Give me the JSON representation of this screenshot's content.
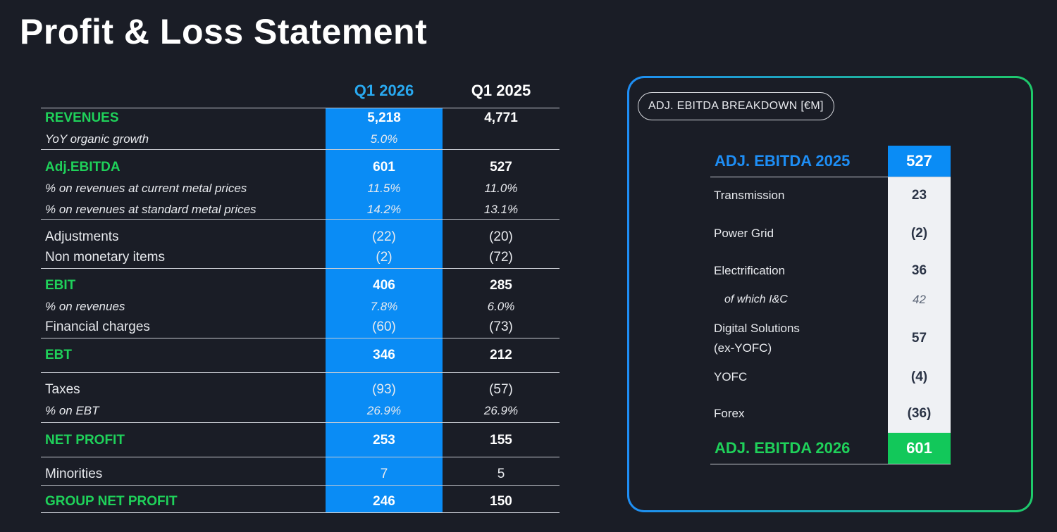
{
  "title": "Profit & Loss Statement",
  "pl": {
    "col1": "Q1 2026",
    "col2": "Q1 2025",
    "rows": [
      {
        "label": "REVENUES",
        "q1_2026": "5,218",
        "q1_2025": "4,771"
      },
      {
        "label": "YoY organic growth",
        "q1_2026": "5.0%",
        "q1_2025": ""
      },
      {
        "label": "Adj.EBITDA",
        "q1_2026": "601",
        "q1_2025": "527"
      },
      {
        "label": "% on revenues at current metal prices",
        "q1_2026": "11.5%",
        "q1_2025": "11.0%"
      },
      {
        "label": "% on revenues at standard metal prices",
        "q1_2026": "14.2%",
        "q1_2025": "13.1%"
      },
      {
        "label": "Adjustments",
        "q1_2026": "(22)",
        "q1_2025": "(20)"
      },
      {
        "label": "Non monetary items",
        "q1_2026": "(2)",
        "q1_2025": "(72)"
      },
      {
        "label": "EBIT",
        "q1_2026": "406",
        "q1_2025": "285"
      },
      {
        "label": "% on revenues",
        "q1_2026": "7.8%",
        "q1_2025": "6.0%"
      },
      {
        "label": "Financial charges",
        "q1_2026": "(60)",
        "q1_2025": "(73)"
      },
      {
        "label": "EBT",
        "q1_2026": "346",
        "q1_2025": "212"
      },
      {
        "label": "Taxes",
        "q1_2026": "(93)",
        "q1_2025": "(57)"
      },
      {
        "label": "% on EBT",
        "q1_2026": "26.9%",
        "q1_2025": "26.9%"
      },
      {
        "label": "NET PROFIT",
        "q1_2026": "253",
        "q1_2025": "155"
      },
      {
        "label": "Minorities",
        "q1_2026": "7",
        "q1_2025": "5"
      },
      {
        "label": "GROUP NET PROFIT",
        "q1_2026": "246",
        "q1_2025": "150"
      }
    ]
  },
  "breakdown": {
    "badge": "ADJ. EBITDA BREAKDOWN [€M]",
    "start": {
      "label": "ADJ. EBITDA 2025",
      "value": "527"
    },
    "items": [
      {
        "label": "Transmission",
        "value": "23"
      },
      {
        "label": "Power Grid",
        "value": "(2)"
      },
      {
        "label": "Electrification",
        "value": "36"
      },
      {
        "label": "of which I&C",
        "value": "42"
      },
      {
        "label": "Digital Solutions",
        "label2": "(ex-YOFC)",
        "value": "57"
      },
      {
        "label": "YOFC",
        "value": "(4)"
      },
      {
        "label": "Forex",
        "value": "(36)"
      }
    ],
    "end": {
      "label": "ADJ. EBITDA 2026",
      "value": "601"
    }
  },
  "colors": {
    "background": "#1a1d26",
    "accent_blue": "#0a8cf5",
    "accent_green": "#1fd15a"
  }
}
